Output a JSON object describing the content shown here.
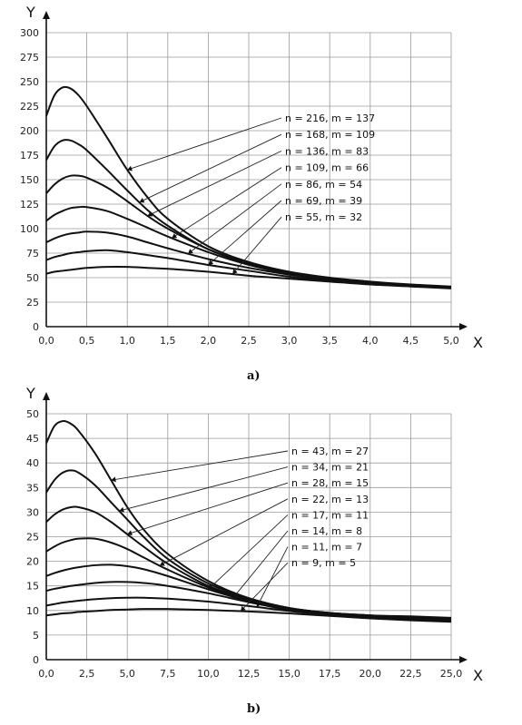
{
  "chart_data": [
    {
      "type": "line",
      "caption": "a)",
      "xlabel": "X",
      "ylabel": "Y",
      "xlim": [
        0,
        5
      ],
      "ylim": [
        0,
        300
      ],
      "x_ticks": [
        "0,0",
        "0,5",
        "1,0",
        "1,5",
        "2,0",
        "2,5",
        "3,0",
        "3,5",
        "4,0",
        "4,5",
        "5,0"
      ],
      "y_ticks": [
        "0",
        "25",
        "50",
        "75",
        "100",
        "125",
        "150",
        "175",
        "200",
        "225",
        "250",
        "275",
        "300"
      ],
      "grid": true,
      "series": [
        {
          "name": "n = 216, m = 137",
          "x": [
            0,
            0.1,
            0.2,
            0.3,
            0.4,
            0.5,
            0.75,
            1.0,
            1.25,
            1.5,
            2.0,
            2.5,
            3.0,
            3.5,
            4.0,
            4.5,
            5.0
          ],
          "y": [
            215,
            236,
            244,
            243,
            236,
            225,
            193,
            160,
            132,
            110,
            82,
            66,
            56,
            50,
            46,
            43,
            41
          ]
        },
        {
          "name": "n = 168, m = 109",
          "x": [
            0,
            0.1,
            0.2,
            0.3,
            0.4,
            0.5,
            0.75,
            1.0,
            1.25,
            1.5,
            2.0,
            2.5,
            3.0,
            3.5,
            4.0,
            4.5,
            5.0
          ],
          "y": [
            170,
            184,
            190,
            190,
            186,
            180,
            160,
            139,
            119,
            103,
            79,
            65,
            55,
            49,
            45,
            42,
            40
          ]
        },
        {
          "name": "n = 136, m = 83",
          "x": [
            0,
            0.1,
            0.2,
            0.3,
            0.4,
            0.5,
            0.75,
            1.0,
            1.25,
            1.5,
            2.0,
            2.5,
            3.0,
            3.5,
            4.0,
            4.5,
            5.0
          ],
          "y": [
            136,
            145,
            151,
            154,
            154,
            152,
            142,
            128,
            113,
            100,
            79,
            64,
            55,
            49,
            45,
            42,
            40
          ]
        },
        {
          "name": "n = 109, m = 66",
          "x": [
            0,
            0.1,
            0.2,
            0.3,
            0.4,
            0.5,
            0.75,
            1.0,
            1.25,
            1.5,
            2.0,
            2.5,
            3.0,
            3.5,
            4.0,
            4.5,
            5.0
          ],
          "y": [
            108,
            114,
            118,
            121,
            122,
            122,
            118,
            110,
            101,
            92,
            76,
            63,
            54,
            49,
            45,
            42,
            40
          ]
        },
        {
          "name": "n = 86, m = 54",
          "x": [
            0,
            0.1,
            0.2,
            0.3,
            0.4,
            0.5,
            0.75,
            1.0,
            1.25,
            1.5,
            2.0,
            2.5,
            3.0,
            3.5,
            4.0,
            4.5,
            5.0
          ],
          "y": [
            86,
            90,
            93,
            95,
            96,
            97,
            96,
            92,
            86,
            80,
            69,
            60,
            53,
            48,
            44,
            42,
            40
          ]
        },
        {
          "name": "n = 69, m = 39",
          "x": [
            0,
            0.1,
            0.2,
            0.3,
            0.4,
            0.5,
            0.75,
            1.0,
            1.25,
            1.5,
            2.0,
            2.5,
            3.0,
            3.5,
            4.0,
            4.5,
            5.0
          ],
          "y": [
            68,
            71,
            73,
            75,
            76,
            77,
            78,
            76,
            73,
            70,
            63,
            57,
            51,
            47,
            44,
            42,
            40
          ]
        },
        {
          "name": "n = 55, m = 32",
          "x": [
            0,
            0.1,
            0.2,
            0.3,
            0.4,
            0.5,
            0.75,
            1.0,
            1.25,
            1.5,
            2.0,
            2.5,
            3.0,
            3.5,
            4.0,
            4.5,
            5.0
          ],
          "y": [
            54,
            56,
            57,
            58,
            59,
            60,
            61,
            61,
            60,
            59,
            56,
            52,
            49,
            46,
            43,
            41,
            39
          ]
        }
      ]
    },
    {
      "type": "line",
      "caption": "b)",
      "xlabel": "X",
      "ylabel": "Y",
      "xlim": [
        0,
        25
      ],
      "ylim": [
        0,
        50
      ],
      "x_ticks": [
        "0,0",
        "2,5",
        "5,0",
        "7,5",
        "10,0",
        "12,5",
        "15,0",
        "17,5",
        "20,0",
        "22,5",
        "25,0"
      ],
      "y_ticks": [
        "0",
        "5",
        "10",
        "15",
        "20",
        "25",
        "30",
        "35",
        "40",
        "45",
        "50"
      ],
      "grid": true,
      "series": [
        {
          "name": "n = 43, m = 27",
          "x": [
            0,
            0.5,
            1,
            1.5,
            2,
            3,
            4,
            5,
            6,
            7.5,
            10,
            12.5,
            15,
            17.5,
            20,
            22.5,
            25
          ],
          "y": [
            44,
            47.5,
            48.5,
            48,
            46.5,
            42,
            36.5,
            31,
            26.5,
            21.5,
            16,
            12.5,
            10.5,
            9.5,
            9,
            8.8,
            8.5
          ]
        },
        {
          "name": "n = 34, m = 21",
          "x": [
            0,
            0.5,
            1,
            1.5,
            2,
            3,
            4,
            5,
            6,
            7.5,
            10,
            12.5,
            15,
            17.5,
            20,
            22.5,
            25
          ],
          "y": [
            34,
            36.5,
            38,
            38.5,
            38,
            35.5,
            32,
            28.5,
            25,
            20.5,
            15.5,
            12.5,
            10.5,
            9.5,
            9,
            8.6,
            8.3
          ]
        },
        {
          "name": "n = 28, m = 15",
          "x": [
            0,
            0.5,
            1,
            1.5,
            2,
            3,
            4,
            5,
            6,
            7.5,
            10,
            12.5,
            15,
            17.5,
            20,
            22.5,
            25
          ],
          "y": [
            28,
            29.5,
            30.5,
            31,
            31,
            30,
            28,
            25.5,
            23,
            19.5,
            15,
            12.3,
            10.5,
            9.5,
            9,
            8.5,
            8.2
          ]
        },
        {
          "name": "n = 22, m = 13",
          "x": [
            0,
            0.5,
            1,
            1.5,
            2,
            3,
            4,
            5,
            6,
            7.5,
            10,
            12.5,
            15,
            17.5,
            20,
            22.5,
            25
          ],
          "y": [
            22,
            23,
            23.8,
            24.3,
            24.6,
            24.6,
            23.8,
            22.5,
            20.8,
            18.3,
            14.7,
            12,
            10.3,
            9.4,
            8.9,
            8.4,
            8.1
          ]
        },
        {
          "name": "n = 17, m = 11",
          "x": [
            0,
            0.5,
            1,
            1.5,
            2,
            3,
            4,
            5,
            6,
            7.5,
            10,
            12.5,
            15,
            17.5,
            20,
            22.5,
            25
          ],
          "y": [
            17,
            17.6,
            18.1,
            18.5,
            18.8,
            19.2,
            19.3,
            19,
            18.4,
            17,
            14.3,
            11.9,
            10.2,
            9.3,
            8.8,
            8.3,
            8
          ]
        },
        {
          "name": "n = 14, m = 8",
          "x": [
            0,
            0.5,
            1,
            1.5,
            2,
            3,
            4,
            5,
            6,
            7.5,
            10,
            12.5,
            15,
            17.5,
            20,
            22.5,
            25
          ],
          "y": [
            14,
            14.4,
            14.7,
            15,
            15.2,
            15.6,
            15.8,
            15.8,
            15.6,
            15,
            13.5,
            11.7,
            10.1,
            9.2,
            8.7,
            8.2,
            7.9
          ]
        },
        {
          "name": "n = 11, m = 7",
          "x": [
            0,
            0.5,
            1,
            1.5,
            2,
            3,
            4,
            5,
            6,
            7.5,
            10,
            12.5,
            15,
            17.5,
            20,
            22.5,
            25
          ],
          "y": [
            11,
            11.3,
            11.6,
            11.8,
            12,
            12.3,
            12.5,
            12.6,
            12.6,
            12.4,
            11.8,
            10.9,
            9.9,
            9.1,
            8.6,
            8.1,
            7.8
          ]
        },
        {
          "name": "n = 9, m = 5",
          "x": [
            0,
            0.5,
            1,
            1.5,
            2,
            3,
            4,
            5,
            6,
            7.5,
            10,
            12.5,
            15,
            17.5,
            20,
            22.5,
            25
          ],
          "y": [
            9,
            9.2,
            9.4,
            9.5,
            9.7,
            9.9,
            10.1,
            10.2,
            10.3,
            10.3,
            10.1,
            9.8,
            9.4,
            8.9,
            8.4,
            8,
            7.7
          ]
        }
      ]
    }
  ]
}
